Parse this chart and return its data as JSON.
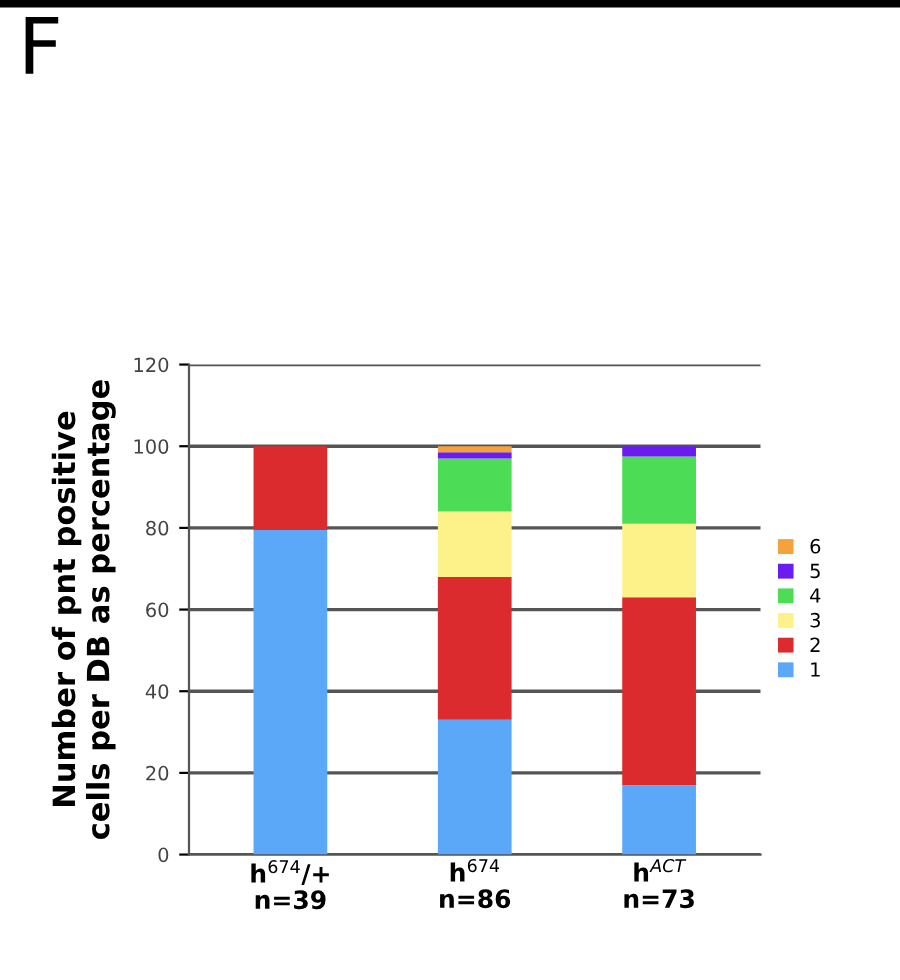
{
  "chart_data": {
    "type": "bar",
    "stacked": true,
    "ylabel": "Number of pnt positive\ncells per DB as percentage",
    "annotations": [
      "F"
    ],
    "categories": [
      "h$^{674}$/+\nn=39",
      "h$^{674}$\nn=86",
      "h$^{ACT}$\nn=73"
    ],
    "series": [
      {
        "name": "1",
        "color": "#5ca8f8",
        "values": [
          79.5,
          33,
          17
        ]
      },
      {
        "name": "2",
        "color": "#dc2b2f",
        "values": [
          20.5,
          35,
          46
        ]
      },
      {
        "name": "3",
        "color": "#fdf18a",
        "values": [
          0,
          16,
          18
        ]
      },
      {
        "name": "4",
        "color": "#4cdc55",
        "values": [
          0,
          13,
          16.5
        ]
      },
      {
        "name": "5",
        "color": "#6a1cf0",
        "values": [
          0,
          1.5,
          2.5
        ]
      },
      {
        "name": "6",
        "color": "#f6a23c",
        "values": [
          0,
          1.5,
          0
        ]
      }
    ],
    "ylim": [
      0,
      120
    ],
    "yticks": [
      0,
      20,
      40,
      60,
      80,
      100,
      120
    ],
    "grid": "y",
    "legend": "right"
  }
}
